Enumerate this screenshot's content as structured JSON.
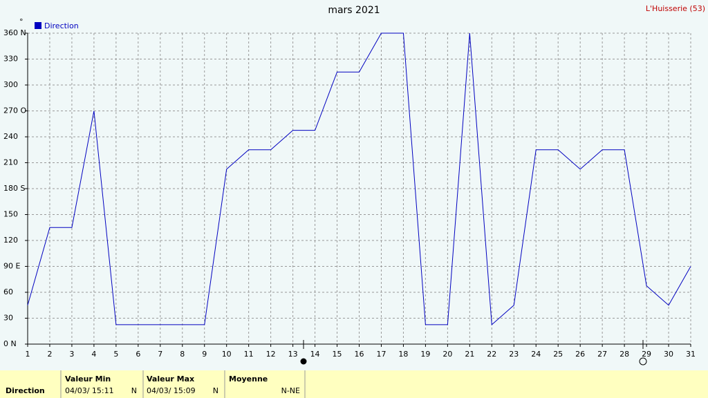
{
  "chart_data": {
    "type": "line",
    "title": "mars 2021",
    "station": "L'Huisserie (53)",
    "y_unit": "°",
    "x": [
      1,
      2,
      3,
      4,
      5,
      6,
      7,
      8,
      9,
      10,
      11,
      12,
      13,
      14,
      15,
      16,
      17,
      18,
      19,
      20,
      21,
      22,
      23,
      24,
      25,
      26,
      27,
      28,
      29,
      30,
      31
    ],
    "xlim": [
      1,
      31
    ],
    "xticks": [
      1,
      2,
      3,
      4,
      5,
      6,
      7,
      8,
      9,
      10,
      11,
      12,
      13,
      14,
      15,
      16,
      17,
      18,
      19,
      20,
      21,
      22,
      23,
      24,
      25,
      26,
      27,
      28,
      29,
      30,
      31
    ],
    "ylim": [
      0,
      360
    ],
    "yticks": [
      {
        "value": 0,
        "label": "0 N"
      },
      30,
      60,
      {
        "value": 90,
        "label": "90 E"
      },
      120,
      150,
      {
        "value": 180,
        "label": "180 S"
      },
      210,
      240,
      {
        "value": 270,
        "label": "270 O"
      },
      300,
      330,
      {
        "value": 360,
        "label": "360 N"
      }
    ],
    "grid": true,
    "series": [
      {
        "name": "Direction",
        "color": "#0000c0",
        "values": [
          45,
          135,
          135,
          270,
          22.5,
          22.5,
          22.5,
          22.5,
          22.5,
          202.5,
          225,
          225,
          247.5,
          247.5,
          315,
          315,
          360,
          360,
          22.5,
          22.5,
          360,
          22.5,
          45,
          225,
          225,
          202.5,
          225,
          225,
          67.5,
          45,
          90
        ]
      }
    ]
  },
  "summary": {
    "label": "Direction",
    "min_header": "Valeur Min",
    "min_date": "04/03/ 15:11",
    "min_value": "N",
    "max_header": "Valeur Max",
    "max_date": "04/03/ 15:09",
    "max_value": "N",
    "mean_header": "Moyenne",
    "mean_value": "N-NE"
  }
}
